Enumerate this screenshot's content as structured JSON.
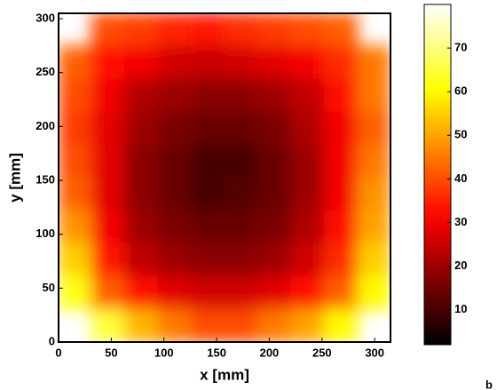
{
  "chart_data": {
    "type": "heatmap",
    "colormap": "hot",
    "xlabel": "x [mm]",
    "ylabel": "y [mm]",
    "xlim": [
      0,
      315
    ],
    "ylim": [
      0,
      305
    ],
    "xticks": [
      0,
      50,
      100,
      150,
      200,
      250,
      300
    ],
    "yticks": [
      0,
      50,
      100,
      150,
      200,
      250,
      300
    ],
    "clim": [
      2,
      80
    ],
    "cticks": [
      10,
      20,
      30,
      40,
      50,
      60,
      70
    ],
    "values": [
      [
        null,
        40,
        38,
        35,
        34,
        36,
        38,
        40,
        42,
        null
      ],
      [
        42,
        32,
        30,
        26,
        25,
        26,
        28,
        30,
        36,
        45
      ],
      [
        40,
        30,
        22,
        20,
        18,
        18,
        20,
        24,
        32,
        45
      ],
      [
        38,
        28,
        20,
        16,
        14,
        14,
        16,
        22,
        30,
        42
      ],
      [
        40,
        28,
        18,
        14,
        10,
        10,
        14,
        20,
        30,
        45
      ],
      [
        42,
        28,
        18,
        14,
        10,
        12,
        14,
        20,
        30,
        48
      ],
      [
        48,
        30,
        20,
        16,
        14,
        14,
        16,
        22,
        32,
        50
      ],
      [
        55,
        34,
        24,
        20,
        18,
        18,
        20,
        26,
        36,
        55
      ],
      [
        62,
        42,
        32,
        28,
        26,
        26,
        28,
        32,
        42,
        60
      ],
      [
        null,
        65,
        52,
        45,
        40,
        40,
        45,
        50,
        60,
        null
      ]
    ],
    "annotation": "b"
  }
}
